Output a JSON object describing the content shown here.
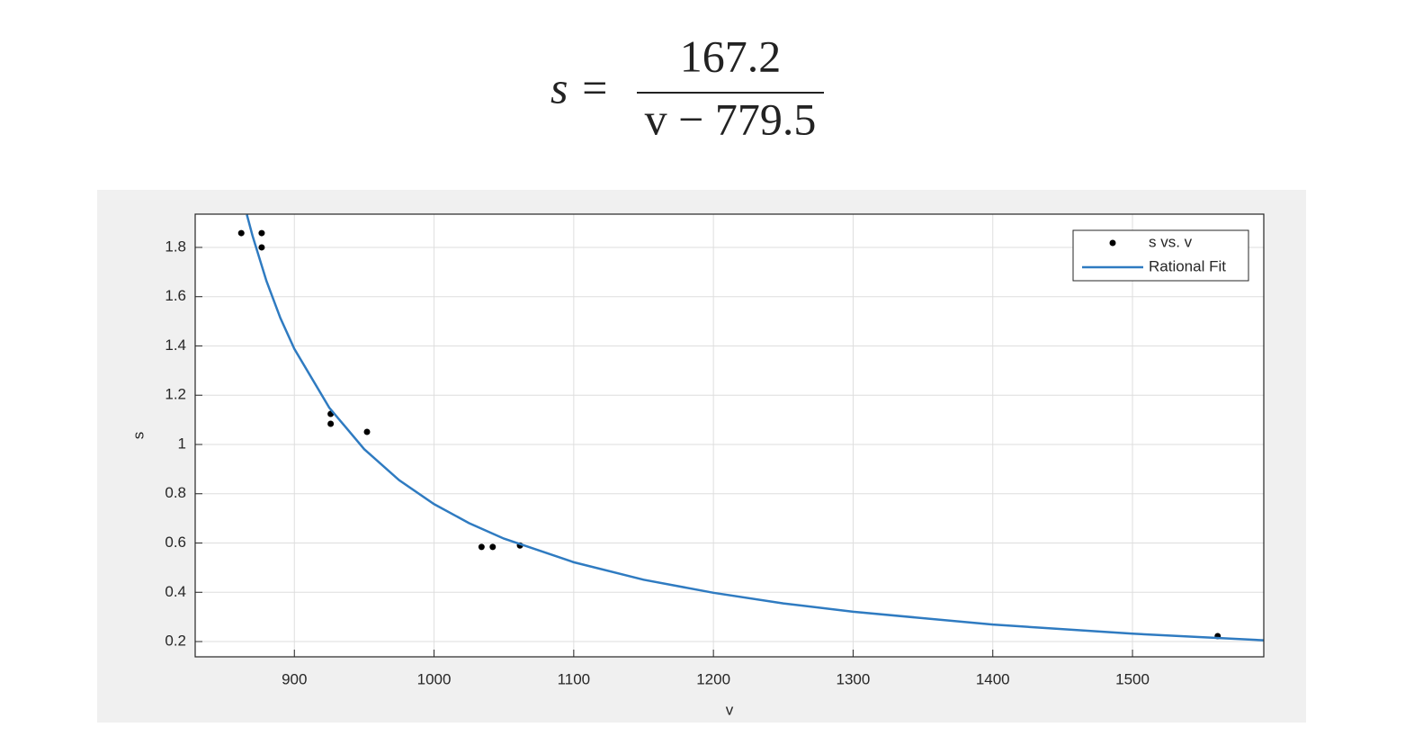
{
  "equation": {
    "lhs": "s =",
    "numerator": "167.2",
    "denominator": "v − 779.5"
  },
  "chart_data": {
    "type": "scatter",
    "x_label": "v",
    "y_label": "s",
    "xlim": [
      829,
      1594
    ],
    "ylim": [
      0.138,
      1.935
    ],
    "xticks": [
      900,
      1000,
      1100,
      1200,
      1300,
      1400,
      1500
    ],
    "yticks": [
      0.2,
      0.4,
      0.6,
      0.8,
      1,
      1.2,
      1.4,
      1.6,
      1.8
    ],
    "grid": true,
    "legend": "top-right",
    "series": [
      {
        "name": "s vs. v",
        "type": "scatter",
        "color": "#000000",
        "x": [
          862,
          876.6,
          876.6,
          926,
          926,
          952,
          1034,
          1042,
          1061.5,
          1561
        ],
        "values": [
          1.858,
          1.858,
          1.8,
          1.124,
          1.084,
          1.051,
          0.584,
          0.584,
          0.59,
          0.222
        ]
      },
      {
        "name": "Rational Fit",
        "type": "line",
        "color": "#2f7bc1",
        "x": [
          866,
          870,
          880,
          890,
          900,
          925,
          950,
          975,
          1000,
          1025,
          1050,
          1100,
          1150,
          1200,
          1250,
          1300,
          1400,
          1500,
          1594
        ],
        "values": [
          1.933,
          1.848,
          1.664,
          1.513,
          1.388,
          1.149,
          0.981,
          0.855,
          0.758,
          0.681,
          0.618,
          0.522,
          0.451,
          0.398,
          0.355,
          0.321,
          0.269,
          0.232,
          0.205
        ]
      }
    ]
  }
}
